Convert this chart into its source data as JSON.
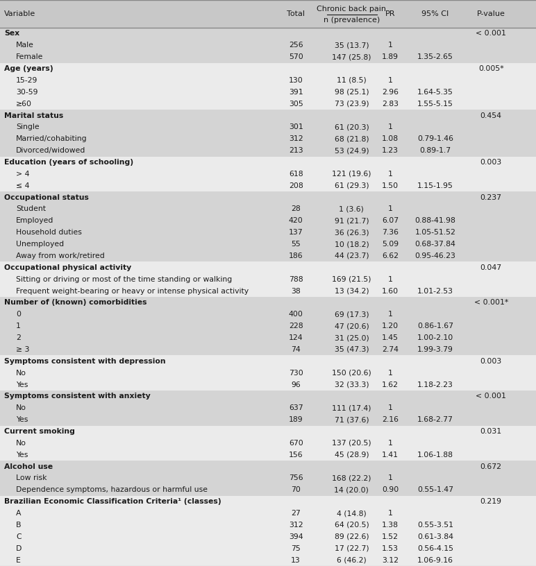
{
  "rows": [
    {
      "label": "Sex",
      "bold": true,
      "indent": 0,
      "total": "",
      "prev": "",
      "pr": "",
      "ci": "",
      "pval": "< 0.001",
      "bg": "#d4d4d4"
    },
    {
      "label": "Male",
      "bold": false,
      "indent": 1,
      "total": "256",
      "prev": "35 (13.7)",
      "pr": "1",
      "ci": "",
      "pval": "",
      "bg": "#d4d4d4"
    },
    {
      "label": "Female",
      "bold": false,
      "indent": 1,
      "total": "570",
      "prev": "147 (25.8)",
      "pr": "1.89",
      "ci": "1.35-2.65",
      "pval": "",
      "bg": "#d4d4d4"
    },
    {
      "label": "Age (years)",
      "bold": true,
      "indent": 0,
      "total": "",
      "prev": "",
      "pr": "",
      "ci": "",
      "pval": "0.005*",
      "bg": "#ebebeb"
    },
    {
      "label": "15-29",
      "bold": false,
      "indent": 1,
      "total": "130",
      "prev": "11 (8.5)",
      "pr": "1",
      "ci": "",
      "pval": "",
      "bg": "#ebebeb"
    },
    {
      "label": "30-59",
      "bold": false,
      "indent": 1,
      "total": "391",
      "prev": "98 (25.1)",
      "pr": "2.96",
      "ci": "1.64-5.35",
      "pval": "",
      "bg": "#ebebeb"
    },
    {
      "label": "≥60",
      "bold": false,
      "indent": 1,
      "total": "305",
      "prev": "73 (23.9)",
      "pr": "2.83",
      "ci": "1.55-5.15",
      "pval": "",
      "bg": "#ebebeb"
    },
    {
      "label": "Marital status",
      "bold": true,
      "indent": 0,
      "total": "",
      "prev": "",
      "pr": "",
      "ci": "",
      "pval": "0.454",
      "bg": "#d4d4d4"
    },
    {
      "label": "Single",
      "bold": false,
      "indent": 1,
      "total": "301",
      "prev": "61 (20.3)",
      "pr": "1",
      "ci": "",
      "pval": "",
      "bg": "#d4d4d4"
    },
    {
      "label": "Married/cohabiting",
      "bold": false,
      "indent": 1,
      "total": "312",
      "prev": "68 (21.8)",
      "pr": "1.08",
      "ci": "0.79-1.46",
      "pval": "",
      "bg": "#d4d4d4"
    },
    {
      "label": "Divorced/widowed",
      "bold": false,
      "indent": 1,
      "total": "213",
      "prev": "53 (24.9)",
      "pr": "1.23",
      "ci": "0.89-1.7",
      "pval": "",
      "bg": "#d4d4d4"
    },
    {
      "label": "Education (years of schooling)",
      "bold": true,
      "indent": 0,
      "total": "",
      "prev": "",
      "pr": "",
      "ci": "",
      "pval": "0.003",
      "bg": "#ebebeb"
    },
    {
      "label": "> 4",
      "bold": false,
      "indent": 1,
      "total": "618",
      "prev": "121 (19.6)",
      "pr": "1",
      "ci": "",
      "pval": "",
      "bg": "#ebebeb"
    },
    {
      "label": "≤ 4",
      "bold": false,
      "indent": 1,
      "total": "208",
      "prev": "61 (29.3)",
      "pr": "1.50",
      "ci": "1.15-1.95",
      "pval": "",
      "bg": "#ebebeb"
    },
    {
      "label": "Occupational status",
      "bold": true,
      "indent": 0,
      "total": "",
      "prev": "",
      "pr": "",
      "ci": "",
      "pval": "0.237",
      "bg": "#d4d4d4"
    },
    {
      "label": "Student",
      "bold": false,
      "indent": 1,
      "total": "28",
      "prev": "1 (3.6)",
      "pr": "1",
      "ci": "",
      "pval": "",
      "bg": "#d4d4d4"
    },
    {
      "label": "Employed",
      "bold": false,
      "indent": 1,
      "total": "420",
      "prev": "91 (21.7)",
      "pr": "6.07",
      "ci": "0.88-41.98",
      "pval": "",
      "bg": "#d4d4d4"
    },
    {
      "label": "Household duties",
      "bold": false,
      "indent": 1,
      "total": "137",
      "prev": "36 (26.3)",
      "pr": "7.36",
      "ci": "1.05-51.52",
      "pval": "",
      "bg": "#d4d4d4"
    },
    {
      "label": "Unemployed",
      "bold": false,
      "indent": 1,
      "total": "55",
      "prev": "10 (18.2)",
      "pr": "5.09",
      "ci": "0.68-37.84",
      "pval": "",
      "bg": "#d4d4d4"
    },
    {
      "label": "Away from work/retired",
      "bold": false,
      "indent": 1,
      "total": "186",
      "prev": "44 (23.7)",
      "pr": "6.62",
      "ci": "0.95-46.23",
      "pval": "",
      "bg": "#d4d4d4"
    },
    {
      "label": "Occupational physical activity",
      "bold": true,
      "indent": 0,
      "total": "",
      "prev": "",
      "pr": "",
      "ci": "",
      "pval": "0.047",
      "bg": "#ebebeb"
    },
    {
      "label": "Sitting or driving or most of the time standing or walking",
      "bold": false,
      "indent": 1,
      "total": "788",
      "prev": "169 (21.5)",
      "pr": "1",
      "ci": "",
      "pval": "",
      "bg": "#ebebeb"
    },
    {
      "label": "Frequent weight-bearing or heavy or intense physical activity",
      "bold": false,
      "indent": 1,
      "total": "38",
      "prev": "13 (34.2)",
      "pr": "1.60",
      "ci": "1.01-2.53",
      "pval": "",
      "bg": "#ebebeb"
    },
    {
      "label": "Number of (known) comorbidities",
      "bold": true,
      "indent": 0,
      "total": "",
      "prev": "",
      "pr": "",
      "ci": "",
      "pval": "< 0.001*",
      "bg": "#d4d4d4"
    },
    {
      "label": "0",
      "bold": false,
      "indent": 1,
      "total": "400",
      "prev": "69 (17.3)",
      "pr": "1",
      "ci": "",
      "pval": "",
      "bg": "#d4d4d4"
    },
    {
      "label": "1",
      "bold": false,
      "indent": 1,
      "total": "228",
      "prev": "47 (20.6)",
      "pr": "1.20",
      "ci": "0.86-1.67",
      "pval": "",
      "bg": "#d4d4d4"
    },
    {
      "label": "2",
      "bold": false,
      "indent": 1,
      "total": "124",
      "prev": "31 (25.0)",
      "pr": "1.45",
      "ci": "1.00-2.10",
      "pval": "",
      "bg": "#d4d4d4"
    },
    {
      "label": "≥ 3",
      "bold": false,
      "indent": 1,
      "total": "74",
      "prev": "35 (47.3)",
      "pr": "2.74",
      "ci": "1.99-3.79",
      "pval": "",
      "bg": "#d4d4d4"
    },
    {
      "label": "Symptoms consistent with depression",
      "bold": true,
      "indent": 0,
      "total": "",
      "prev": "",
      "pr": "",
      "ci": "",
      "pval": "0.003",
      "bg": "#ebebeb"
    },
    {
      "label": "No",
      "bold": false,
      "indent": 1,
      "total": "730",
      "prev": "150 (20.6)",
      "pr": "1",
      "ci": "",
      "pval": "",
      "bg": "#ebebeb"
    },
    {
      "label": "Yes",
      "bold": false,
      "indent": 1,
      "total": "96",
      "prev": "32 (33.3)",
      "pr": "1.62",
      "ci": "1.18-2.23",
      "pval": "",
      "bg": "#ebebeb"
    },
    {
      "label": "Symptoms consistent with anxiety",
      "bold": true,
      "indent": 0,
      "total": "",
      "prev": "",
      "pr": "",
      "ci": "",
      "pval": "< 0.001",
      "bg": "#d4d4d4"
    },
    {
      "label": "No",
      "bold": false,
      "indent": 1,
      "total": "637",
      "prev": "111 (17.4)",
      "pr": "1",
      "ci": "",
      "pval": "",
      "bg": "#d4d4d4"
    },
    {
      "label": "Yes",
      "bold": false,
      "indent": 1,
      "total": "189",
      "prev": "71 (37.6)",
      "pr": "2.16",
      "ci": "1.68-2.77",
      "pval": "",
      "bg": "#d4d4d4"
    },
    {
      "label": "Current smoking",
      "bold": true,
      "indent": 0,
      "total": "",
      "prev": "",
      "pr": "",
      "ci": "",
      "pval": "0.031",
      "bg": "#ebebeb"
    },
    {
      "label": "No",
      "bold": false,
      "indent": 1,
      "total": "670",
      "prev": "137 (20.5)",
      "pr": "1",
      "ci": "",
      "pval": "",
      "bg": "#ebebeb"
    },
    {
      "label": "Yes",
      "bold": false,
      "indent": 1,
      "total": "156",
      "prev": "45 (28.9)",
      "pr": "1.41",
      "ci": "1.06-1.88",
      "pval": "",
      "bg": "#ebebeb"
    },
    {
      "label": "Alcohol use",
      "bold": true,
      "indent": 0,
      "total": "",
      "prev": "",
      "pr": "",
      "ci": "",
      "pval": "0.672",
      "bg": "#d4d4d4"
    },
    {
      "label": "Low risk",
      "bold": false,
      "indent": 1,
      "total": "756",
      "prev": "168 (22.2)",
      "pr": "1",
      "ci": "",
      "pval": "",
      "bg": "#d4d4d4"
    },
    {
      "label": "Dependence symptoms, hazardous or harmful use",
      "bold": false,
      "indent": 1,
      "total": "70",
      "prev": "14 (20.0)",
      "pr": "0.90",
      "ci": "0.55-1.47",
      "pval": "",
      "bg": "#d4d4d4"
    },
    {
      "label": "Brazilian Economic Classification Criteria¹ (classes)",
      "bold": true,
      "indent": 0,
      "total": "",
      "prev": "",
      "pr": "",
      "ci": "",
      "pval": "0.219",
      "bg": "#ebebeb"
    },
    {
      "label": "A",
      "bold": false,
      "indent": 1,
      "total": "27",
      "prev": "4 (14.8)",
      "pr": "1",
      "ci": "",
      "pval": "",
      "bg": "#ebebeb"
    },
    {
      "label": "B",
      "bold": false,
      "indent": 1,
      "total": "312",
      "prev": "64 (20.5)",
      "pr": "1.38",
      "ci": "0.55-3.51",
      "pval": "",
      "bg": "#ebebeb"
    },
    {
      "label": "C",
      "bold": false,
      "indent": 1,
      "total": "394",
      "prev": "89 (22.6)",
      "pr": "1.52",
      "ci": "0.61-3.84",
      "pval": "",
      "bg": "#ebebeb"
    },
    {
      "label": "D",
      "bold": false,
      "indent": 1,
      "total": "75",
      "prev": "17 (22.7)",
      "pr": "1.53",
      "ci": "0.56-4.15",
      "pval": "",
      "bg": "#ebebeb"
    },
    {
      "label": "E",
      "bold": false,
      "indent": 1,
      "total": "13",
      "prev": "6 (46.2)",
      "pr": "3.12",
      "ci": "1.06-9.16",
      "pval": "",
      "bg": "#ebebeb"
    }
  ],
  "header_bg": "#c8c8c8",
  "border_color": "#888888",
  "text_color": "#1a1a1a",
  "font_size": 7.8,
  "header_font_size": 8.0,
  "col_positions": {
    "variable": 0.008,
    "total": 0.538,
    "prev": 0.618,
    "pr": 0.718,
    "ci": 0.79,
    "pval": 0.898
  },
  "indent_size": 0.022
}
